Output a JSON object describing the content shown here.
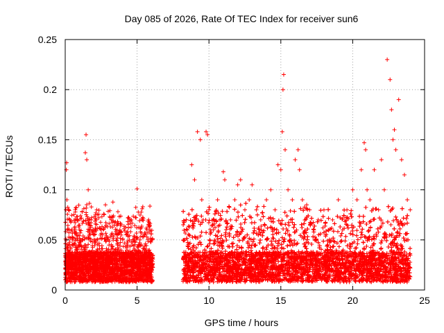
{
  "chart_data": {
    "type": "scatter",
    "title": "Day 085 of 2026, Rate Of TEC Index for receiver sun6",
    "xlabel": "GPS time / hours",
    "ylabel": "ROTI / TECUs",
    "xlim": [
      0,
      25
    ],
    "ylim": [
      0,
      0.25
    ],
    "x_ticks": [
      0,
      5,
      10,
      15,
      20,
      25
    ],
    "x_tick_labels": [
      "0",
      "5",
      "10",
      "15",
      "20",
      "25"
    ],
    "y_ticks": [
      0,
      0.05,
      0.1,
      0.15,
      0.2,
      0.25
    ],
    "y_tick_labels": [
      "0",
      "0.05",
      "0.1",
      "0.15",
      "0.2",
      "0.25"
    ],
    "grid": true,
    "marker": "+",
    "color": "#ff0000",
    "series": [
      {
        "x": [
          0.05,
          0.08,
          0.1,
          0.12,
          0.15,
          0.2,
          0.3,
          0.5,
          0.8,
          1.0,
          1.2,
          1.4,
          1.45,
          1.5,
          1.6,
          1.8,
          2.0,
          2.2,
          2.5,
          2.8,
          3.0,
          3.2,
          3.5,
          3.8,
          4.0,
          4.3,
          4.6,
          4.8,
          5.0,
          5.2,
          5.5,
          5.8,
          5.9,
          6.0,
          8.3,
          8.5,
          8.8,
          9.0,
          9.2,
          9.4,
          9.5,
          9.6,
          9.8,
          9.9,
          10.0,
          10.3,
          10.6,
          11.0,
          11.1,
          11.5,
          11.8,
          12.0,
          12.2,
          12.5,
          12.8,
          13.0,
          13.3,
          13.6,
          14.0,
          14.3,
          14.6,
          14.8,
          15.0,
          15.1,
          15.15,
          15.2,
          15.3,
          15.5,
          15.8,
          16.0,
          16.2,
          16.3,
          16.5,
          16.8,
          17.0,
          17.3,
          17.6,
          18.0,
          18.3,
          18.6,
          19.0,
          19.3,
          19.6,
          20.0,
          20.3,
          20.6,
          20.8,
          20.9,
          21.0,
          21.2,
          21.5,
          21.8,
          22.0,
          22.2,
          22.4,
          22.6,
          22.7,
          22.8,
          22.9,
          23.0,
          23.2,
          23.4,
          23.6,
          23.8,
          24.0
        ],
        "y": [
          0.08,
          0.12,
          0.127,
          0.09,
          0.06,
          0.04,
          0.03,
          0.05,
          0.04,
          0.06,
          0.03,
          0.137,
          0.155,
          0.13,
          0.1,
          0.07,
          0.05,
          0.08,
          0.06,
          0.085,
          0.05,
          0.07,
          0.04,
          0.06,
          0.05,
          0.04,
          0.07,
          0.05,
          0.101,
          0.05,
          0.04,
          0.07,
          0.06,
          0.05,
          0.05,
          0.06,
          0.125,
          0.11,
          0.158,
          0.15,
          0.09,
          0.07,
          0.158,
          0.155,
          0.08,
          0.06,
          0.09,
          0.118,
          0.11,
          0.07,
          0.09,
          0.105,
          0.11,
          0.08,
          0.09,
          0.105,
          0.08,
          0.07,
          0.09,
          0.1,
          0.08,
          0.125,
          0.12,
          0.158,
          0.2,
          0.215,
          0.14,
          0.1,
          0.09,
          0.13,
          0.14,
          0.12,
          0.09,
          0.085,
          0.08,
          0.06,
          0.07,
          0.08,
          0.06,
          0.07,
          0.09,
          0.06,
          0.08,
          0.1,
          0.09,
          0.12,
          0.147,
          0.14,
          0.1,
          0.09,
          0.12,
          0.08,
          0.13,
          0.1,
          0.23,
          0.21,
          0.18,
          0.15,
          0.16,
          0.14,
          0.19,
          0.13,
          0.115,
          0.09,
          0.08
        ]
      }
    ]
  }
}
